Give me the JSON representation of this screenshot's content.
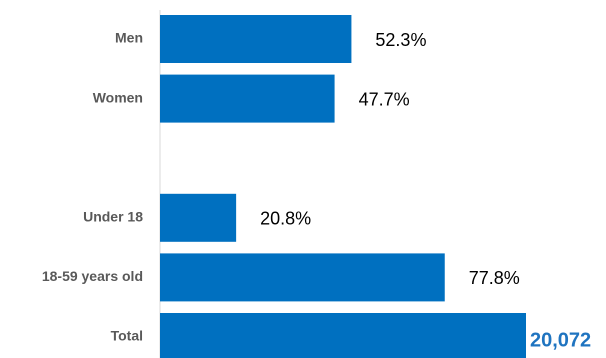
{
  "chart_data": {
    "type": "hbar",
    "categories": [
      "Men",
      "Women",
      null,
      "Under 18",
      "18-59 years old"
    ],
    "values": [
      52.3,
      47.7,
      null,
      20.8,
      77.8
    ],
    "value_labels": [
      "52.3%",
      "47.7%",
      null,
      "20.8%",
      "77.8%"
    ],
    "total": {
      "category": "Total",
      "value": 20072,
      "value_label": "20,072"
    },
    "color": "#0070c0",
    "xlim": [
      0,
      100
    ]
  }
}
